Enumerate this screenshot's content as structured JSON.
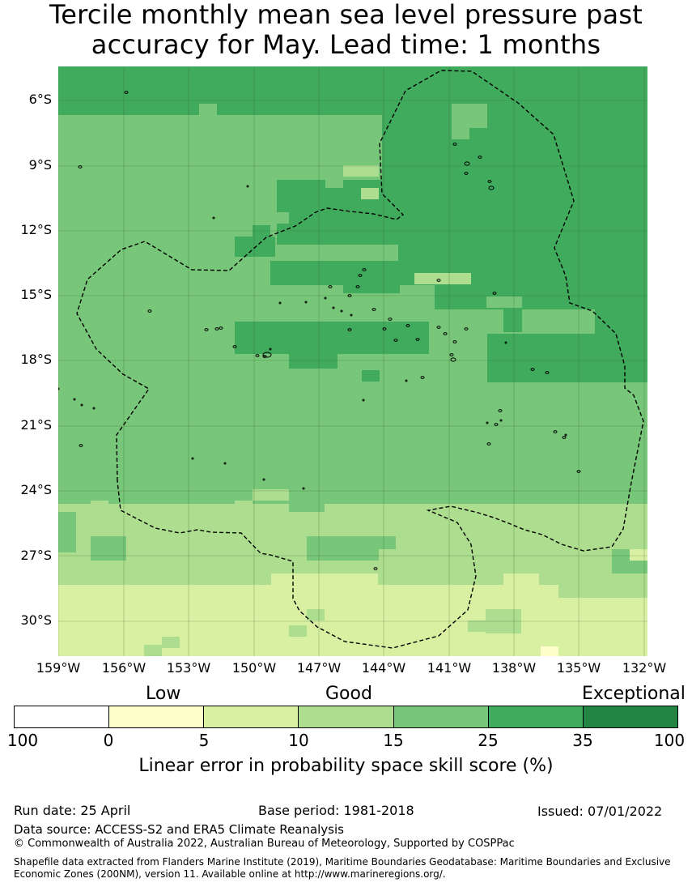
{
  "title": "Tercile monthly mean sea level pressure past accuracy for May. Lead time: 1 months",
  "map": {
    "latitude_labels": [
      "6°S",
      "9°S",
      "12°S",
      "15°S",
      "18°S",
      "21°S",
      "24°S",
      "27°S",
      "30°S"
    ],
    "longitude_labels": [
      "159°W",
      "156°W",
      "153°W",
      "150°W",
      "147°W",
      "144°W",
      "141°W",
      "138°W",
      "135°W",
      "132°W"
    ],
    "colors": {
      "low": "#ffffcc",
      "good_low": "#d9f0a3",
      "good": "#addd8e",
      "good_high": "#78c679",
      "very_good": "#41ab5d",
      "exceptional": "#238443",
      "boundary_line": "#000000",
      "grid_line": "#2c5f2c"
    }
  },
  "legend": {
    "categories": [
      "Low",
      "Good",
      "Exceptional"
    ],
    "tick_labels": [
      "100",
      "0",
      "5",
      "10",
      "15",
      "25",
      "35",
      "100"
    ],
    "colors": [
      "#ffffff",
      "#ffffcc",
      "#d9f0a3",
      "#addd8e",
      "#78c679",
      "#41ab5d",
      "#238443"
    ],
    "title": "Linear error in probability space skill score (%)"
  },
  "footer": {
    "run_date": "Run date: 25 April",
    "base_period": "Base period: 1981-2018",
    "issued": "Issued: 07/01/2022",
    "data_source": "Data source: ACCESS-S2 and ERA5 Climate Reanalysis",
    "copyright": "© Commonwealth of Australia 2022, Australian Bureau of Meteorology, Supported by COSPPac",
    "shapefile": "Shapefile data extracted from Flanders Marine Institute (2019), Maritime Boundaries Geodatabase: Maritime Boundaries and Exclusive Economic Zones (200NM), version 11. Available online at http://www.marineregions.org/."
  }
}
